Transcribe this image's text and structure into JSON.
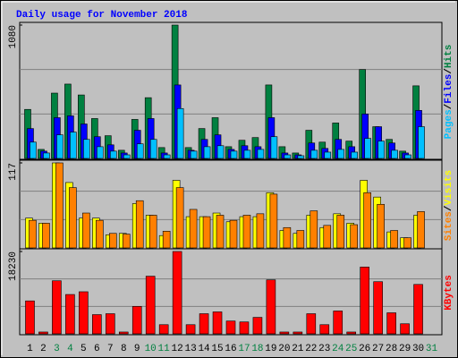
{
  "legend_separator": "/",
  "weekend_color": "#008040",
  "weekday_color": "#000000",
  "weekend_days": [
    3,
    4,
    10,
    11,
    17,
    18,
    24,
    25,
    31
  ],
  "chart_data": [
    {
      "type": "bar",
      "title": "Daily usage for November 2018",
      "categories": [
        1,
        2,
        3,
        4,
        5,
        6,
        7,
        8,
        9,
        10,
        11,
        12,
        13,
        14,
        15,
        16,
        17,
        18,
        19,
        20,
        21,
        22,
        23,
        24,
        25,
        26,
        27,
        28,
        29,
        30,
        31
      ],
      "ylim": [
        0,
        1080
      ],
      "yticks": [
        1080
      ],
      "series": [
        {
          "name": "Hits",
          "color": "#008040",
          "values": [
            397,
            73,
            529,
            602,
            514,
            323,
            184,
            66,
            316,
            492,
            88,
            1080,
            88,
            242,
            330,
            95,
            147,
            169,
            595,
            95,
            44,
            228,
            132,
            287,
            140,
            720,
            257,
            154,
            59,
            588,
            0
          ]
        },
        {
          "name": "Files",
          "color": "#0000ff",
          "values": [
            242,
            59,
            330,
            345,
            279,
            176,
            110,
            44,
            228,
            323,
            44,
            595,
            66,
            154,
            191,
            73,
            103,
            95,
            330,
            44,
            29,
            125,
            81,
            154,
            95,
            360,
            257,
            125,
            44,
            389,
            0
          ]
        },
        {
          "name": "Pages",
          "color": "#00c0ff",
          "values": [
            132,
            44,
            191,
            213,
            154,
            95,
            59,
            29,
            118,
            154,
            29,
            404,
            59,
            95,
            103,
            59,
            66,
            73,
            176,
            29,
            22,
            66,
            51,
            73,
            51,
            162,
            140,
            66,
            29,
            257,
            0
          ]
        }
      ]
    },
    {
      "type": "bar",
      "categories": [
        1,
        2,
        3,
        4,
        5,
        6,
        7,
        8,
        9,
        10,
        11,
        12,
        13,
        14,
        15,
        16,
        17,
        18,
        19,
        20,
        21,
        22,
        23,
        24,
        25,
        26,
        27,
        28,
        29,
        30,
        31
      ],
      "ylim": [
        0,
        117
      ],
      "yticks": [
        117
      ],
      "series": [
        {
          "name": "Visits",
          "color": "#ffff00",
          "values": [
            41,
            34,
            117,
            90,
            41,
            41,
            18,
            20,
            61,
            45,
            17,
            93,
            43,
            43,
            48,
            36,
            43,
            43,
            76,
            24,
            20,
            45,
            28,
            47,
            34,
            93,
            70,
            22,
            14,
            45,
            0
          ]
        },
        {
          "name": "Sites",
          "color": "#ff8000",
          "values": [
            38,
            34,
            117,
            83,
            48,
            38,
            20,
            19,
            65,
            45,
            23,
            83,
            53,
            43,
            45,
            38,
            45,
            47,
            74,
            28,
            24,
            51,
            31,
            45,
            32,
            76,
            60,
            24,
            14,
            50,
            0
          ]
        }
      ]
    },
    {
      "type": "bar",
      "categories": [
        1,
        2,
        3,
        4,
        5,
        6,
        7,
        8,
        9,
        10,
        11,
        12,
        13,
        14,
        15,
        16,
        17,
        18,
        19,
        20,
        21,
        22,
        23,
        24,
        25,
        26,
        27,
        28,
        29,
        30,
        31
      ],
      "ylim": [
        0,
        18230
      ],
      "yticks": [
        18230
      ],
      "series": [
        {
          "name": "KBytes",
          "color": "#ff0000",
          "values": [
            7292,
            405,
            11748,
            8710,
            9318,
            4254,
            4456,
            405,
            6077,
            12761,
            2026,
            18230,
            2026,
            4456,
            4861,
            2836,
            2633,
            3646,
            11951,
            405,
            405,
            4456,
            2026,
            5064,
            405,
            14787,
            11546,
            4659,
            2228,
            10938,
            0
          ]
        }
      ]
    }
  ]
}
